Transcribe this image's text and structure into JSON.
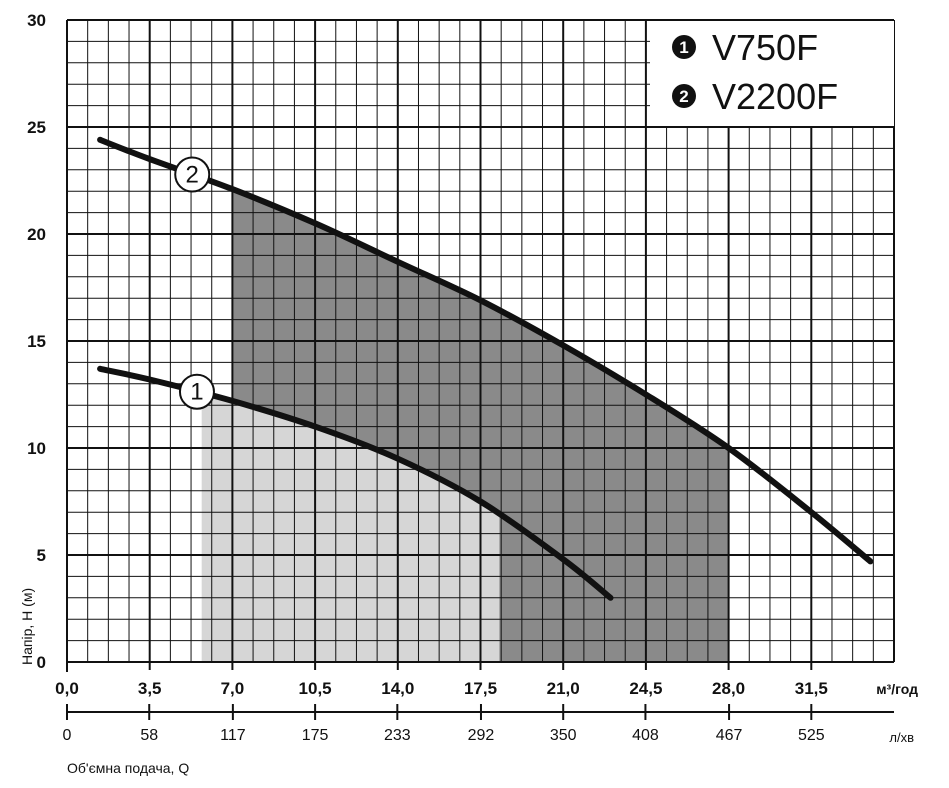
{
  "chart_data": {
    "type": "line",
    "xlim": [
      0,
      35
    ],
    "ylim": [
      0,
      30
    ],
    "x_ticks": [
      0,
      3.5,
      7,
      10.5,
      14,
      17.5,
      21,
      24.5,
      28,
      31.5
    ],
    "x_tick_labels": [
      "0,0",
      "3,5",
      "7,0",
      "10,5",
      "14,0",
      "17,5",
      "21,0",
      "24,5",
      "28,0",
      "31,5"
    ],
    "x_unit": "м³/год",
    "y_ticks": [
      0,
      5,
      10,
      15,
      20,
      25,
      30
    ],
    "y_tick_labels": [
      "0",
      "5",
      "10",
      "15",
      "20",
      "25",
      "30"
    ],
    "ylabel": "Напір, Н (м)",
    "secondary_x_ticks": [
      0,
      58,
      117,
      175,
      233,
      292,
      350,
      408,
      467,
      525
    ],
    "secondary_x_unit": "л/хв",
    "xlabel": "Об'ємна подача, Q",
    "grid": true,
    "legend_position": "top-right",
    "series": [
      {
        "name": "V750F",
        "marker_label": "1",
        "legend_badge": "1",
        "x": [
          1.4,
          3.5,
          7,
          10.5,
          14,
          17.5,
          21,
          23
        ],
        "y": [
          13.7,
          13.2,
          12.2,
          11,
          9.5,
          7.5,
          4.8,
          3
        ]
      },
      {
        "name": "V2200F",
        "marker_label": "2",
        "legend_badge": "2",
        "x": [
          1.4,
          3.5,
          7,
          10.5,
          14,
          17.5,
          21,
          24.5,
          28,
          31.5,
          34
        ],
        "y": [
          24.4,
          23.5,
          22.1,
          20.5,
          18.7,
          16.9,
          14.8,
          12.5,
          10,
          7,
          4.7
        ]
      }
    ],
    "operating_ranges": [
      {
        "series": "V2200F",
        "x_range": [
          7,
          28
        ],
        "color": "#8a8a8a"
      },
      {
        "series": "V750F",
        "x_range": [
          5.7,
          18.3
        ],
        "color": "#d6d6d6"
      }
    ]
  }
}
